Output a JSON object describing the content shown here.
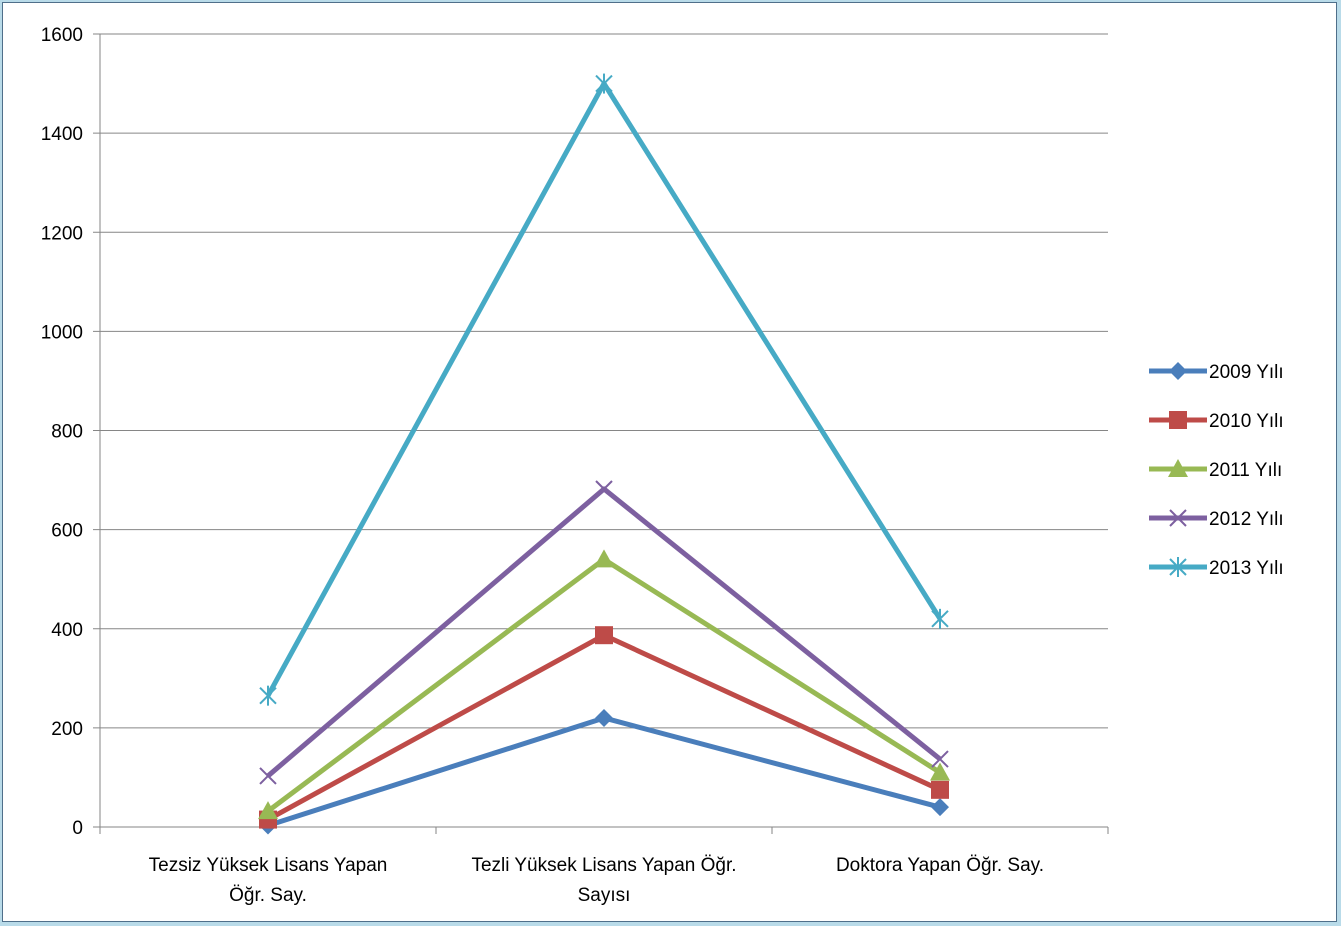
{
  "chart_data": {
    "type": "line",
    "title": "",
    "xlabel": "",
    "ylabel": "",
    "ylim": [
      0,
      1600
    ],
    "yticks": [
      0,
      200,
      400,
      600,
      800,
      1000,
      1200,
      1400,
      1600
    ],
    "grid": "horizontal",
    "legend_position": "right",
    "categories": [
      [
        "Tezsiz Yüksek Lisans Yapan",
        "Öğr. Say."
      ],
      [
        "Tezli Yüksek Lisans Yapan Öğr.",
        "Sayısı"
      ],
      [
        "Doktora Yapan Öğr. Say."
      ]
    ],
    "series": [
      {
        "name": "2009 Yılı",
        "values": [
          3,
          220,
          40
        ],
        "color": "#4a7ebb",
        "marker": "diamond"
      },
      {
        "name": "2010 Yılı",
        "values": [
          15,
          387,
          75
        ],
        "color": "#be4b48",
        "marker": "square"
      },
      {
        "name": "2011 Yılı",
        "values": [
          32,
          540,
          110
        ],
        "color": "#98b954",
        "marker": "triangle"
      },
      {
        "name": "2012 Yılı",
        "values": [
          103,
          682,
          137
        ],
        "color": "#7d60a0",
        "marker": "x"
      },
      {
        "name": "2013 Yılı",
        "values": [
          265,
          1500,
          420
        ],
        "color": "#46aac5",
        "marker": "star"
      }
    ]
  }
}
